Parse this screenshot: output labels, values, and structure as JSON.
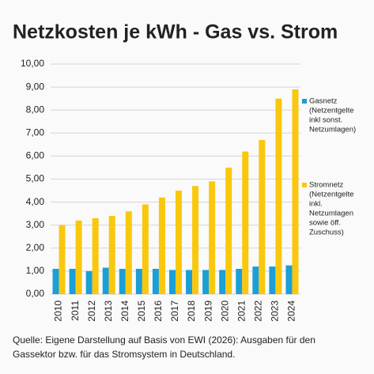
{
  "chart_data": {
    "type": "bar",
    "title": "Netzkosten je kWh - Gas vs. Strom",
    "categories": [
      "2010",
      "2011",
      "2012",
      "2013",
      "2014",
      "2015",
      "2016",
      "2017",
      "2018",
      "2019",
      "2020",
      "2021",
      "2022",
      "2023",
      "2024"
    ],
    "series": [
      {
        "name": "Gasnetz",
        "legend_note": [
          "(Netzentgelte",
          "inkl sonst.",
          "Netzumlagen)"
        ],
        "color": "#1a9fd6",
        "values": [
          1.1,
          1.1,
          1.0,
          1.15,
          1.1,
          1.1,
          1.1,
          1.05,
          1.05,
          1.05,
          1.05,
          1.1,
          1.2,
          1.2,
          1.25
        ]
      },
      {
        "name": "Stromnetz",
        "legend_note": [
          "(Netzentgelte",
          "inkl.",
          "Netzumlagen",
          "sowie öff.",
          "Zuschuss)"
        ],
        "color": "#f9c80e",
        "values": [
          3.0,
          3.2,
          3.3,
          3.4,
          3.6,
          3.9,
          4.2,
          4.5,
          4.7,
          4.9,
          5.5,
          6.2,
          6.7,
          8.5,
          8.9
        ]
      }
    ],
    "ylim": [
      0,
      10
    ],
    "yticks": [
      {
        "value": 0,
        "label": "0,00"
      },
      {
        "value": 1,
        "label": "1,00"
      },
      {
        "value": 2,
        "label": "2,00"
      },
      {
        "value": 3,
        "label": "3,00"
      },
      {
        "value": 4,
        "label": "4,00"
      },
      {
        "value": 5,
        "label": "5,00"
      },
      {
        "value": 6,
        "label": "6,00"
      },
      {
        "value": 7,
        "label": "7,00"
      },
      {
        "value": 8,
        "label": "8,00"
      },
      {
        "value": 9,
        "label": "9,00"
      },
      {
        "value": 10,
        "label": "10,00"
      }
    ],
    "grid": true,
    "source": [
      "Quelle: Eigene Darstellung auf Basis von EWI (2026): Ausgaben für den",
      "Gassektor bzw. für das Stromsystem in Deutschland."
    ]
  }
}
